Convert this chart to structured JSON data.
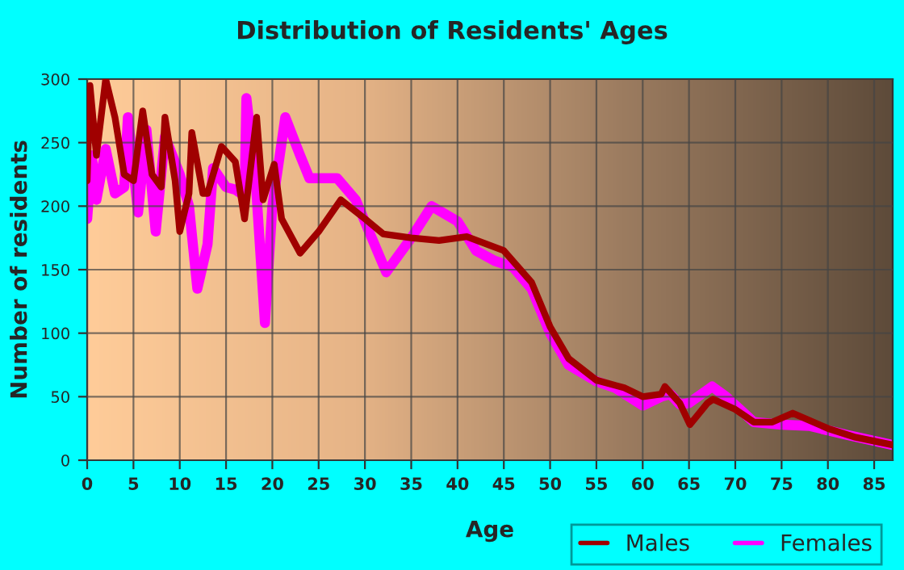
{
  "chart_data": {
    "type": "line",
    "title": "Distribution of Residents' Ages",
    "xlabel": "Age",
    "ylabel": "Number of residents",
    "xlim": [
      0,
      87
    ],
    "xticks": [
      0,
      5,
      10,
      15,
      20,
      25,
      30,
      35,
      40,
      45,
      50,
      55,
      60,
      65,
      70,
      75,
      80,
      85
    ],
    "ylim": [
      0,
      300
    ],
    "yticks": [
      0,
      50,
      100,
      150,
      200,
      250,
      300
    ],
    "grid": true,
    "legend": "bottom right",
    "line_style": "solid",
    "series": [
      {
        "name": "Males",
        "color": "#a00000",
        "x": [
          0,
          0.3,
          1,
          2,
          3,
          4,
          5,
          6,
          7,
          8,
          8.4,
          9.5,
          10,
          11,
          11.3,
          12.5,
          13,
          14.5,
          16,
          17,
          18.3,
          19,
          20.2,
          21,
          23,
          25,
          27.4,
          30,
          32,
          35,
          38,
          41,
          45,
          48,
          50,
          52,
          55,
          58,
          60,
          62,
          62.4,
          64,
          65.1,
          67,
          67.6,
          70,
          72,
          74,
          76.2,
          80,
          83,
          87
        ],
        "values": [
          220,
          295,
          240,
          300,
          270,
          225,
          220,
          275,
          225,
          215,
          270,
          220,
          180,
          210,
          258,
          210,
          210,
          247,
          235,
          190,
          270,
          205,
          233,
          190,
          163,
          180,
          205,
          190,
          178,
          175,
          173,
          176,
          165,
          140,
          105,
          80,
          63,
          57,
          50,
          52,
          58,
          45,
          28,
          45,
          48,
          40,
          30,
          30,
          37,
          25,
          18,
          12
        ]
      },
      {
        "name": "Females",
        "color": "#ff00ff",
        "x": [
          0,
          0.5,
          1,
          2,
          3,
          4,
          4.4,
          5.5,
          6.4,
          7.4,
          8.4,
          10,
          11,
          11.9,
          13,
          13.6,
          15,
          16,
          17,
          17.2,
          18.2,
          19.2,
          20,
          21.4,
          23,
          24,
          27,
          29,
          32.3,
          35,
          37.2,
          40,
          42,
          44,
          46,
          48,
          50,
          52,
          55,
          57,
          60,
          62,
          63,
          64,
          65,
          67.5,
          69,
          72,
          75,
          78,
          82,
          87
        ],
        "values": [
          190,
          240,
          205,
          245,
          210,
          215,
          270,
          195,
          260,
          180,
          255,
          225,
          200,
          135,
          170,
          230,
          215,
          213,
          208,
          285,
          220,
          108,
          200,
          270,
          240,
          222,
          222,
          205,
          148,
          175,
          200,
          188,
          165,
          157,
          152,
          135,
          100,
          75,
          62,
          57,
          43,
          50,
          52,
          44,
          45,
          58,
          50,
          30,
          28,
          27,
          20,
          12
        ]
      }
    ]
  }
}
